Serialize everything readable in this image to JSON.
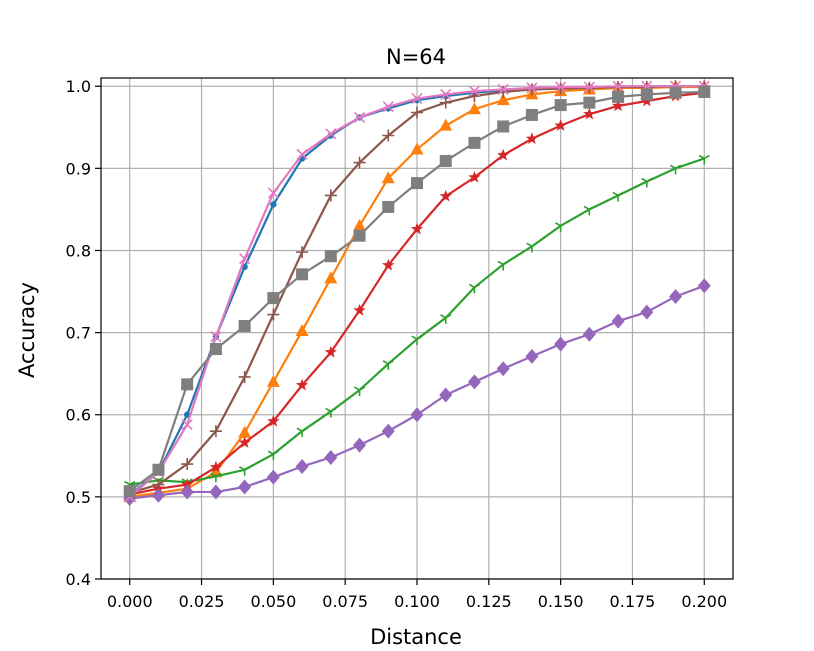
{
  "chart_data": {
    "type": "line",
    "title": "N=64",
    "xlabel": "Distance",
    "ylabel": "Accuracy",
    "xlim": [
      -0.01,
      0.21
    ],
    "ylim": [
      0.4,
      1.01
    ],
    "x_ticks": [
      "0.000",
      "0.025",
      "0.050",
      "0.075",
      "0.100",
      "0.125",
      "0.150",
      "0.175",
      "0.200"
    ],
    "y_ticks": [
      "0.4",
      "0.5",
      "0.6",
      "0.7",
      "0.8",
      "0.9",
      "1.0"
    ],
    "grid": true,
    "x": [
      0.0,
      0.01,
      0.02,
      0.03,
      0.04,
      0.05,
      0.06,
      0.07,
      0.08,
      0.09,
      0.1,
      0.11,
      0.12,
      0.13,
      0.14,
      0.15,
      0.16,
      0.17,
      0.18,
      0.19,
      0.2
    ],
    "series": [
      {
        "color": "#1f77b4",
        "marker": "circle",
        "values": [
          0.502,
          0.53,
          0.6,
          0.695,
          0.78,
          0.856,
          0.912,
          0.94,
          0.962,
          0.973,
          0.983,
          0.988,
          0.992,
          0.995,
          0.997,
          0.998,
          0.999,
          0.999,
          1.0,
          1.0,
          1.0
        ]
      },
      {
        "color": "#ff7f0e",
        "marker": "triangle",
        "values": [
          0.5,
          0.505,
          0.51,
          0.53,
          0.578,
          0.64,
          0.702,
          0.766,
          0.83,
          0.888,
          0.923,
          0.952,
          0.972,
          0.983,
          0.99,
          0.994,
          0.996,
          0.998,
          0.998,
          0.999,
          0.999
        ]
      },
      {
        "color": "#2ca02c",
        "marker": "tri_down",
        "values": [
          0.515,
          0.52,
          0.518,
          0.525,
          0.533,
          0.552,
          0.58,
          0.604,
          0.63,
          0.662,
          0.692,
          0.718,
          0.755,
          0.783,
          0.805,
          0.83,
          0.85,
          0.867,
          0.884,
          0.9,
          0.912
        ]
      },
      {
        "color": "#d62728",
        "marker": "star",
        "values": [
          0.503,
          0.51,
          0.515,
          0.536,
          0.566,
          0.592,
          0.636,
          0.676,
          0.727,
          0.782,
          0.826,
          0.866,
          0.889,
          0.916,
          0.936,
          0.952,
          0.966,
          0.976,
          0.982,
          0.988,
          0.992
        ]
      },
      {
        "color": "#9467bd",
        "marker": "diamond",
        "values": [
          0.498,
          0.502,
          0.506,
          0.506,
          0.512,
          0.524,
          0.537,
          0.548,
          0.563,
          0.58,
          0.6,
          0.624,
          0.64,
          0.656,
          0.671,
          0.686,
          0.698,
          0.714,
          0.725,
          0.744,
          0.757
        ]
      },
      {
        "color": "#8c564b",
        "marker": "plus",
        "values": [
          0.505,
          0.515,
          0.54,
          0.58,
          0.646,
          0.722,
          0.798,
          0.867,
          0.907,
          0.94,
          0.968,
          0.98,
          0.988,
          0.993,
          0.996,
          0.997,
          0.998,
          0.999,
          0.999,
          1.0,
          1.0
        ]
      },
      {
        "color": "#e377c2",
        "marker": "x",
        "values": [
          0.5,
          0.53,
          0.588,
          0.695,
          0.79,
          0.87,
          0.917,
          0.942,
          0.962,
          0.975,
          0.985,
          0.99,
          0.994,
          0.996,
          0.998,
          0.999,
          0.999,
          1.0,
          1.0,
          1.0,
          1.0
        ]
      },
      {
        "color": "#7f7f7f",
        "marker": "square",
        "values": [
          0.507,
          0.533,
          0.637,
          0.68,
          0.708,
          0.742,
          0.771,
          0.793,
          0.818,
          0.853,
          0.882,
          0.909,
          0.931,
          0.951,
          0.965,
          0.977,
          0.98,
          0.987,
          0.99,
          0.992,
          0.993
        ]
      }
    ]
  }
}
